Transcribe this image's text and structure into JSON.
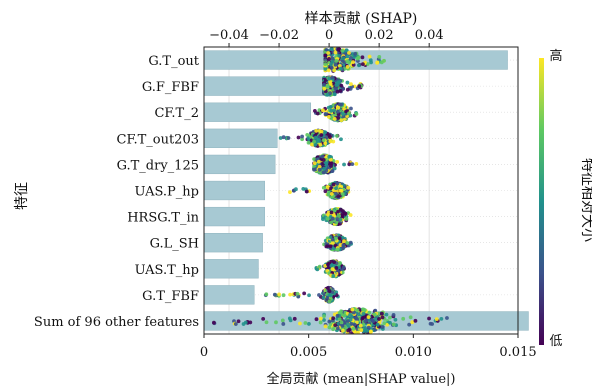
{
  "chart_data": {
    "type": "bar",
    "title": "",
    "top_axis": {
      "label": "样本贡献 (SHAP)",
      "range": [
        -0.05,
        0.0755
      ],
      "ticks": [
        "−0.04",
        "−0.02",
        "0",
        "0.02",
        "0.04"
      ],
      "tick_values": [
        -0.04,
        -0.02,
        0,
        0.02,
        0.04
      ],
      "grid": true
    },
    "bottom_axis": {
      "label": "全局贡献 (mean|SHAP value|)",
      "range": [
        0,
        0.015
      ],
      "ticks": [
        "0",
        "0.005",
        "0.010",
        "0.015"
      ],
      "tick_values": [
        0,
        0.005,
        0.01,
        0.015
      ]
    },
    "ylabel": "特征",
    "colorbar": {
      "label": "特征相对大小",
      "high_label": "高",
      "low_label": "低",
      "colors": [
        "#440154",
        "#3b528b",
        "#21918c",
        "#5ec962",
        "#fde725"
      ]
    },
    "bar_color": "#a7c9d3",
    "categories": [
      "G.T_out",
      "G.F_FBF",
      "CF.T_2",
      "CF.T_out203",
      "G.T_dry_125",
      "UAS.P_hp",
      "HRSG.T_in",
      "G.L_SH",
      "UAS.T_hp",
      "G.T_FBF",
      "Sum of 96 other features"
    ],
    "values": [
      0.0145,
      0.0063,
      0.0051,
      0.0035,
      0.0034,
      0.0029,
      0.0029,
      0.0028,
      0.0026,
      0.0024,
      0.0155
    ],
    "beeswarm": [
      {
        "center": 0.002,
        "min": -0.0015,
        "max": 0.022,
        "spread": 0.0098,
        "width": 0.85
      },
      {
        "center": 0.0,
        "min": -0.002,
        "max": 0.013,
        "spread": 0.0052,
        "width": 0.7
      },
      {
        "center": 0.004,
        "min": -0.006,
        "max": 0.012,
        "spread": 0.0042,
        "width": 0.65
      },
      {
        "center": -0.004,
        "min": -0.021,
        "max": 0.007,
        "spread": 0.0042,
        "width": 0.6
      },
      {
        "center": -0.002,
        "min": -0.006,
        "max": 0.011,
        "spread": 0.0042,
        "width": 0.7
      },
      {
        "center": 0.003,
        "min": -0.018,
        "max": 0.009,
        "spread": 0.0036,
        "width": 0.6
      },
      {
        "center": 0.003,
        "min": -0.003,
        "max": 0.009,
        "spread": 0.0034,
        "width": 0.6
      },
      {
        "center": 0.003,
        "min": -0.002,
        "max": 0.01,
        "spread": 0.0034,
        "width": 0.6
      },
      {
        "center": 0.002,
        "min": -0.0055,
        "max": 0.006,
        "spread": 0.003,
        "width": 0.6
      },
      {
        "center": 0.0,
        "min": -0.026,
        "max": 0.004,
        "spread": 0.002,
        "width": 0.55
      },
      {
        "center": 0.012,
        "min": -0.048,
        "max": 0.048,
        "spread": 0.012,
        "width": 0.95
      }
    ]
  }
}
